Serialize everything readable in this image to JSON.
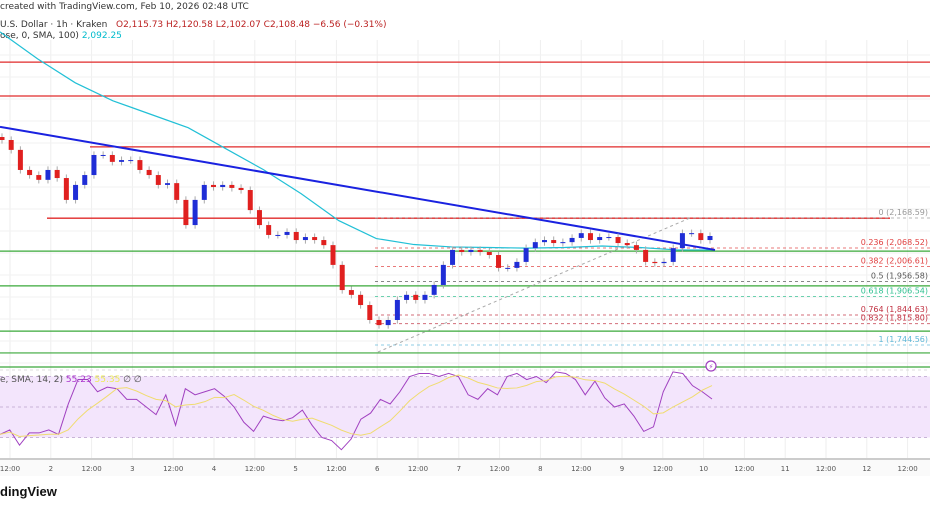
{
  "header": {
    "created": "created with TradingView.com, Feb 10, 2026 02:48 UTC",
    "symbol": "U.S. Dollar · 1h · Kraken",
    "ohlc": "O2,115.73  H2,120.58  L2,102.07  C2,108.48  −6.56 (−0.31%)",
    "sma_label": "ose, 0, SMA, 100)",
    "sma_value": "2,092.25"
  },
  "rsi_legend": {
    "label": "e, SMA, 14, 2)",
    "rsi_value": "55.23",
    "ma_value": "55.35",
    "extra1": "∅",
    "extra2": "∅"
  },
  "logo": "dingView",
  "colors": {
    "up": "#1f2dd6",
    "down": "#e0201f",
    "sma": "#22c0d6",
    "trendline": "#1a22e0",
    "support": "#3aa83a",
    "resistance": "#e02a2a",
    "rsi": "#a040c0",
    "rsi_ma": "#f0dc70",
    "rsi_band": "#f3e5fc"
  },
  "chart_data": {
    "type": "candlestick",
    "timeframe": "1h",
    "ylim": [
      1661,
      2763
    ],
    "x_ticks": [
      "12:00",
      "2",
      "12:00",
      "3",
      "12:00",
      "4",
      "12:00",
      "5",
      "12:00",
      "6",
      "12:00",
      "7",
      "12:00",
      "8",
      "12:00",
      "9",
      "12:00",
      "10",
      "12:00",
      "11",
      "12:00",
      "12",
      "12:00"
    ],
    "closes": [
      2429,
      2396,
      2329,
      2312,
      2296,
      2329,
      2302,
      2229,
      2279,
      2312,
      2379,
      2379,
      2356,
      2362,
      2362,
      2329,
      2312,
      2279,
      2285,
      2229,
      2145,
      2229,
      2279,
      2272,
      2279,
      2269,
      2262,
      2195,
      2145,
      2112,
      2112,
      2122,
      2095,
      2105,
      2095,
      2078,
      2012,
      1928,
      1912,
      1878,
      1828,
      1811,
      1828,
      1895,
      1912,
      1895,
      1912,
      1945,
      2012,
      2062,
      2055,
      2062,
      2055,
      2045,
      2002,
      2002,
      2022,
      2068,
      2088,
      2095,
      2085,
      2088,
      2102,
      2118,
      2095,
      2105,
      2105,
      2085,
      2078,
      2062,
      2022,
      2018,
      2022,
      2068,
      2118,
      2118,
      2095,
      2108.48
    ],
    "resistance_levels": [
      2689,
      2576,
      2406,
      2168
    ],
    "support_levels": [
      2058,
      1942,
      1791,
      1718,
      1671
    ],
    "trendline": {
      "start": 2473,
      "end": 2062
    },
    "sma100": [
      2790,
      2700,
      2620,
      2560,
      2515,
      2470,
      2400,
      2330,
      2250,
      2160,
      2100,
      2080,
      2072,
      2070,
      2068,
      2070,
      2075,
      2070,
      2062,
      2062
    ],
    "fibonacci": [
      {
        "level": "0",
        "price": 2168.59,
        "label": "0 (2,168.59)",
        "color": "#999999"
      },
      {
        "level": "0.236",
        "price": 2068.52,
        "label": "0.236 (2,068.52)",
        "color": "#e04040"
      },
      {
        "level": "0.382",
        "price": 2006.61,
        "label": "0.382 (2,006.61)",
        "color": "#e04040"
      },
      {
        "level": "0.5",
        "price": 1956.58,
        "label": "0.5 (1,956.58)",
        "color": "#555555"
      },
      {
        "level": "0.618",
        "price": 1906.54,
        "label": "0.618 (1,906.54)",
        "color": "#30c090"
      },
      {
        "level": "0.764",
        "price": 1844.63,
        "label": "0.764 (1,844.63)",
        "color": "#c03040"
      },
      {
        "level": "0.832",
        "price": 1815.8,
        "label": "0.832 (1,815.80)",
        "color": "#c03040"
      },
      {
        "level": "1",
        "price": 1744.56,
        "label": "1 (1,744.56)",
        "color": "#60b8d8"
      }
    ],
    "rsi": {
      "band": [
        30,
        70
      ],
      "values": [
        32,
        35,
        25,
        33,
        33,
        35,
        32,
        52,
        68,
        68,
        60,
        63,
        62,
        55,
        55,
        50,
        45,
        58,
        38,
        62,
        58,
        60,
        62,
        57,
        50,
        40,
        34,
        44,
        42,
        41,
        43,
        48,
        38,
        30,
        28,
        22,
        29,
        42,
        46,
        55,
        52,
        60,
        70,
        72,
        72,
        70,
        72,
        70,
        58,
        55,
        62,
        58,
        70,
        72,
        68,
        70,
        66,
        73,
        72,
        68,
        58,
        67,
        56,
        50,
        52,
        44,
        34,
        37,
        60,
        73,
        72,
        64,
        60,
        55.23
      ]
    }
  }
}
